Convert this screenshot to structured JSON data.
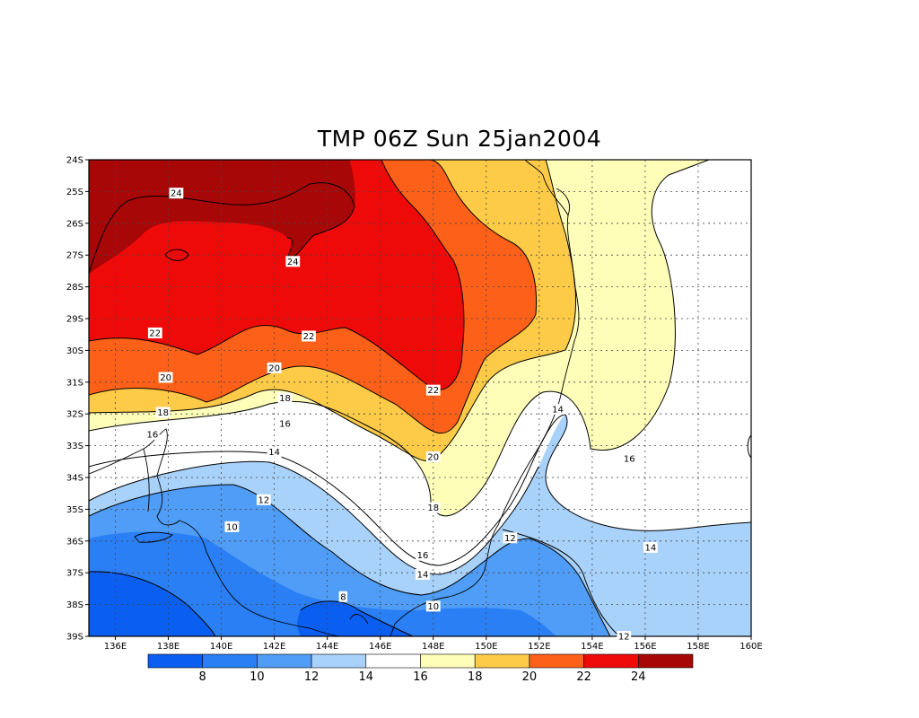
{
  "title": "TMP 06Z Sun 25jan2004",
  "lat_labels": [
    "24S",
    "25S",
    "26S",
    "27S",
    "28S",
    "29S",
    "30S",
    "31S",
    "32S",
    "33S",
    "34S",
    "35S",
    "36S",
    "37S",
    "38S",
    "39S"
  ],
  "lon_labels": [
    "136E",
    "138E",
    "140E",
    "142E",
    "144E",
    "146E",
    "148E",
    "150E",
    "152E",
    "154E",
    "156E",
    "158E",
    "160E"
  ],
  "colorbar": {
    "colors": [
      "#0a5ef0",
      "#2a7ff5",
      "#4f9df7",
      "#a9d2fb",
      "#ffffff",
      "#fefeb9",
      "#fdcb48",
      "#fd6019",
      "#ef0a0a",
      "#a70707"
    ],
    "labels": [
      "8",
      "10",
      "12",
      "14",
      "16",
      "18",
      "20",
      "22",
      "24"
    ]
  },
  "contour_labels": [
    {
      "text": "24",
      "lon": 138.3,
      "lat": -25.05
    },
    {
      "text": "24",
      "lon": 142.7,
      "lat": -27.2
    },
    {
      "text": "22",
      "lon": 137.5,
      "lat": -29.45
    },
    {
      "text": "22",
      "lon": 143.3,
      "lat": -29.55
    },
    {
      "text": "22",
      "lon": 148.0,
      "lat": -31.25
    },
    {
      "text": "20",
      "lon": 137.9,
      "lat": -30.85
    },
    {
      "text": "20",
      "lon": 142.0,
      "lat": -30.55
    },
    {
      "text": "20",
      "lon": 148.0,
      "lat": -33.35
    },
    {
      "text": "18",
      "lon": 137.8,
      "lat": -31.95
    },
    {
      "text": "18",
      "lon": 142.4,
      "lat": -31.5
    },
    {
      "text": "18",
      "lon": 148.0,
      "lat": -34.95
    },
    {
      "text": "16",
      "lon": 137.4,
      "lat": -32.65
    },
    {
      "text": "16",
      "lon": 142.4,
      "lat": -32.3
    },
    {
      "text": "16",
      "lon": 147.6,
      "lat": -36.45
    },
    {
      "text": "16",
      "lon": 155.4,
      "lat": -33.4
    },
    {
      "text": "14",
      "lon": 142.0,
      "lat": -33.2
    },
    {
      "text": "14",
      "lon": 147.6,
      "lat": -37.05
    },
    {
      "text": "14",
      "lon": 152.7,
      "lat": -31.85
    },
    {
      "text": "14",
      "lon": 156.2,
      "lat": -36.2
    },
    {
      "text": "12",
      "lon": 141.6,
      "lat": -34.7
    },
    {
      "text": "12",
      "lon": 150.9,
      "lat": -35.9
    },
    {
      "text": "12",
      "lon": 155.2,
      "lat": -39.0
    },
    {
      "text": "10",
      "lon": 140.4,
      "lat": -35.55
    },
    {
      "text": "10",
      "lon": 148.0,
      "lat": -38.05
    },
    {
      "text": "8",
      "lon": 144.6,
      "lat": -37.75
    }
  ]
}
